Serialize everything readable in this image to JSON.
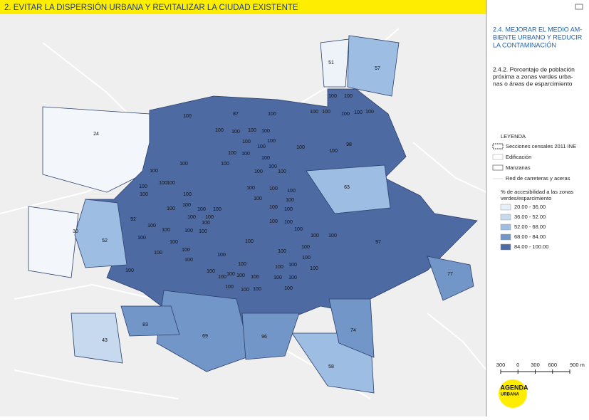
{
  "header": {
    "title": "2. EVITAR LA DISPERSIÓN URBANA Y REVITALIZAR LA CIUDAD EXISTENTE"
  },
  "panel": {
    "section_lines": [
      "2.4. MEJORAR EL MEDIO AM-",
      "BIENTE URBANO Y REDUCIR",
      "LA CONTAMINACIÓN"
    ],
    "indicator_lines": [
      "2.4.2. Porcentaje de población",
      "próxima a zonas verdes urba-",
      "nas o áreas de esparcimiento"
    ]
  },
  "legend": {
    "title": "LEYENDA",
    "layers": [
      "Secciones censales 2011 INE",
      "Edificación",
      "Manzanas",
      "Red de carreteras y aceras"
    ],
    "scale_title_lines": [
      "% de accesibilidad a las zonas",
      "verdes/esparcimiento"
    ],
    "classes": [
      {
        "label": "20.00 - 36.00",
        "color": "#e6eef8"
      },
      {
        "label": "36.00 - 52.00",
        "color": "#c7d9ee"
      },
      {
        "label": "52.00 - 68.00",
        "color": "#9dbde2"
      },
      {
        "label": "68.00 - 84.00",
        "color": "#7396c9"
      },
      {
        "label": "84.00 - 100.00",
        "color": "#4d6aa3"
      }
    ]
  },
  "scale_bar": [
    "300",
    "0",
    "300",
    "600",
    "900 m"
  ],
  "logo": {
    "line1": "AGENDA",
    "line2": "URBANA"
  },
  "map": {
    "section_labels": [
      51,
      57,
      24,
      87,
      98,
      63,
      92,
      30,
      52,
      97,
      77,
      83,
      69,
      96,
      74,
      43,
      58,
      100,
      100,
      100,
      100,
      100,
      100,
      100,
      100,
      100,
      100,
      100,
      100,
      100,
      100,
      100,
      100,
      100,
      100,
      100,
      100,
      100,
      100,
      100,
      100,
      100,
      100,
      100,
      100,
      100,
      100,
      100,
      100,
      100,
      100,
      100,
      100,
      100,
      100,
      100,
      100,
      100,
      100,
      100,
      100,
      100,
      100,
      100,
      100,
      100,
      100,
      100,
      100,
      100,
      100,
      100,
      100,
      100,
      100,
      100,
      100,
      100,
      100,
      100,
      100,
      100,
      100,
      100,
      100,
      100,
      100,
      100,
      100,
      100,
      100,
      100,
      100,
      100,
      100,
      100,
      100,
      100
    ]
  }
}
